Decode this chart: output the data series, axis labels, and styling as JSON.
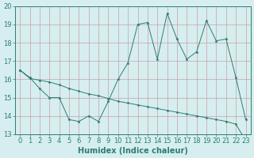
{
  "x": [
    0,
    1,
    2,
    3,
    4,
    5,
    6,
    7,
    8,
    9,
    10,
    11,
    12,
    13,
    14,
    15,
    16,
    17,
    18,
    19,
    20,
    21,
    22,
    23
  ],
  "y_line1": [
    16.5,
    16.1,
    15.5,
    15.0,
    15.0,
    13.8,
    13.7,
    14.0,
    13.7,
    14.8,
    16.0,
    16.9,
    19.0,
    19.1,
    17.1,
    19.6,
    18.2,
    17.1,
    17.5,
    19.2,
    18.1,
    18.2,
    16.1,
    13.8
  ],
  "y_line2": [
    16.5,
    16.05,
    15.95,
    15.85,
    15.7,
    15.5,
    15.35,
    15.2,
    15.1,
    14.95,
    14.8,
    14.7,
    14.6,
    14.5,
    14.4,
    14.3,
    14.2,
    14.1,
    14.0,
    13.9,
    13.8,
    13.7,
    13.55,
    12.65
  ],
  "line_color": "#2e7d6e",
  "bg_color": "#d6eef0",
  "grid_color": "#b8d8dc",
  "xlabel": "Humidex (Indice chaleur)",
  "ylim": [
    13,
    20
  ],
  "xlim": [
    -0.5,
    23.5
  ],
  "yticks": [
    13,
    14,
    15,
    16,
    17,
    18,
    19,
    20
  ],
  "xticks": [
    0,
    1,
    2,
    3,
    4,
    5,
    6,
    7,
    8,
    9,
    10,
    11,
    12,
    13,
    14,
    15,
    16,
    17,
    18,
    19,
    20,
    21,
    22,
    23
  ],
  "tick_fontsize": 6,
  "xlabel_fontsize": 7
}
